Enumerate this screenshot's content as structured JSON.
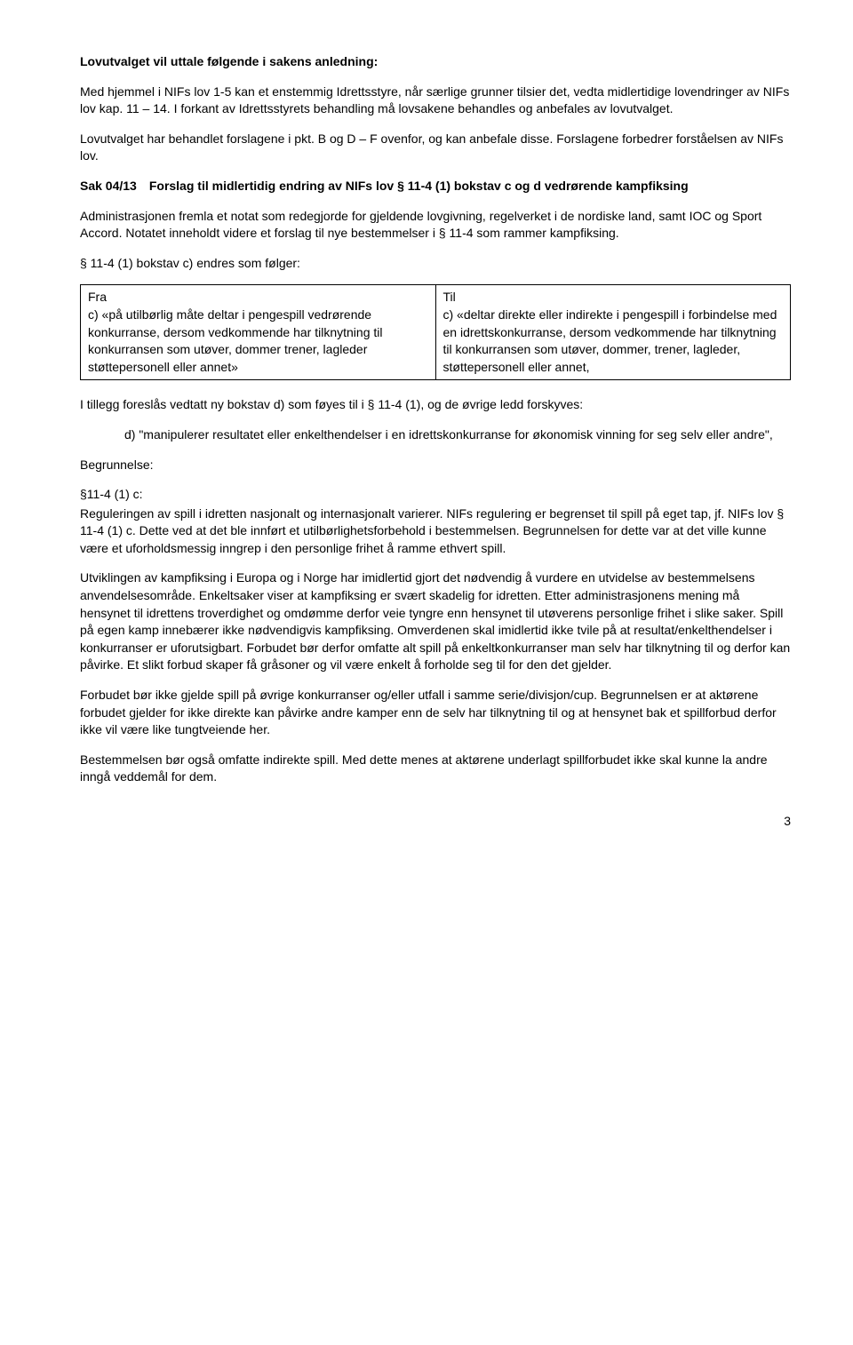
{
  "heading": "Lovutvalget vil uttale følgende i sakens anledning:",
  "para1": "Med hjemmel i NIFs lov 1-5 kan et enstemmig Idrettsstyre, når særlige grunner tilsier det, vedta midlertidige lovendringer av NIFs lov kap. 11 – 14. I forkant av Idrettsstyrets behandling må lovsakene behandles og anbefales av lovutvalget.",
  "para2": "Lovutvalget har behandlet forslagene i pkt. B og D – F ovenfor, og kan anbefale disse. Forslagene forbedrer forståelsen av NIFs lov.",
  "sak_heading": "Sak 04/13 Forslag til midlertidig endring av NIFs lov § 11-4 (1) bokstav c og d vedrørende kampfiksing",
  "para3": "Administrasjonen fremla et notat som redegjorde for gjeldende lovgivning, regelverket i de nordiske land, samt IOC og Sport Accord. Notatet inneholdt videre et forslag til nye bestemmelser i § 11-4 som rammer kampfiksing.",
  "para4": "§ 11-4 (1) bokstav c) endres som følger:",
  "table": {
    "header_left": "Fra",
    "header_right": "Til",
    "cell_left": "c) «på utilbørlig måte deltar i pengespill vedrørende konkurranse, dersom vedkommende har tilknytning til konkurransen som utøver, dommer trener, lagleder støttepersonell eller annet»",
    "cell_right": "c) «deltar direkte eller indirekte i pengespill i forbindelse med en idrettskonkurranse, dersom vedkommende har tilknytning til konkurransen som utøver, dommer, trener, lagleder, støttepersonell eller annet,"
  },
  "para5": "I tillegg foreslås vedtatt ny bokstav d) som føyes til i § 11-4 (1), og de øvrige ledd forskyves:",
  "para6": "d) \"manipulerer resultatet eller enkelthendelser i en idrettskonkurranse for økonomisk vinning for seg selv eller andre\",",
  "para7": "Begrunnelse:",
  "para8a": "§11-4 (1) c:",
  "para8b": "Reguleringen av spill i idretten nasjonalt og internasjonalt varierer. NIFs regulering er begrenset til spill på eget tap, jf. NIFs lov § 11-4 (1) c. Dette ved at det ble innført et utilbørlighetsforbehold i bestemmelsen. Begrunnelsen for dette var at det ville kunne være et uforholdsmessig inngrep i den personlige frihet å ramme ethvert spill.",
  "para9": "Utviklingen av kampfiksing i Europa og i Norge har imidlertid gjort det nødvendig å vurdere en utvidelse av bestemmelsens anvendelsesområde. Enkeltsaker viser at kampfiksing er svært skadelig for idretten. Etter administrasjonens mening må hensynet til idrettens troverdighet og omdømme derfor veie tyngre enn hensynet til utøverens personlige frihet i slike saker. Spill på egen kamp innebærer ikke nødvendigvis kampfiksing. Omverdenen skal imidlertid ikke tvile på at resultat/enkelthendelser i konkurranser er uforutsigbart. Forbudet bør derfor omfatte alt spill på enkeltkonkurranser man selv har tilknytning til og derfor kan påvirke. Et slikt forbud skaper få gråsoner og vil være enkelt å forholde seg til for den det gjelder.",
  "para10": "Forbudet bør ikke gjelde spill på øvrige konkurranser og/eller utfall i samme serie/divisjon/cup. Begrunnelsen er at aktørene forbudet gjelder for ikke direkte kan påvirke andre kamper enn de selv har tilknytning til og at hensynet bak et spillforbud derfor ikke vil være like tungtveiende her.",
  "para11": "Bestemmelsen bør også omfatte indirekte spill. Med dette menes at aktørene underlagt spillforbudet ikke skal kunne la andre inngå veddemål for dem.",
  "page_number": "3"
}
